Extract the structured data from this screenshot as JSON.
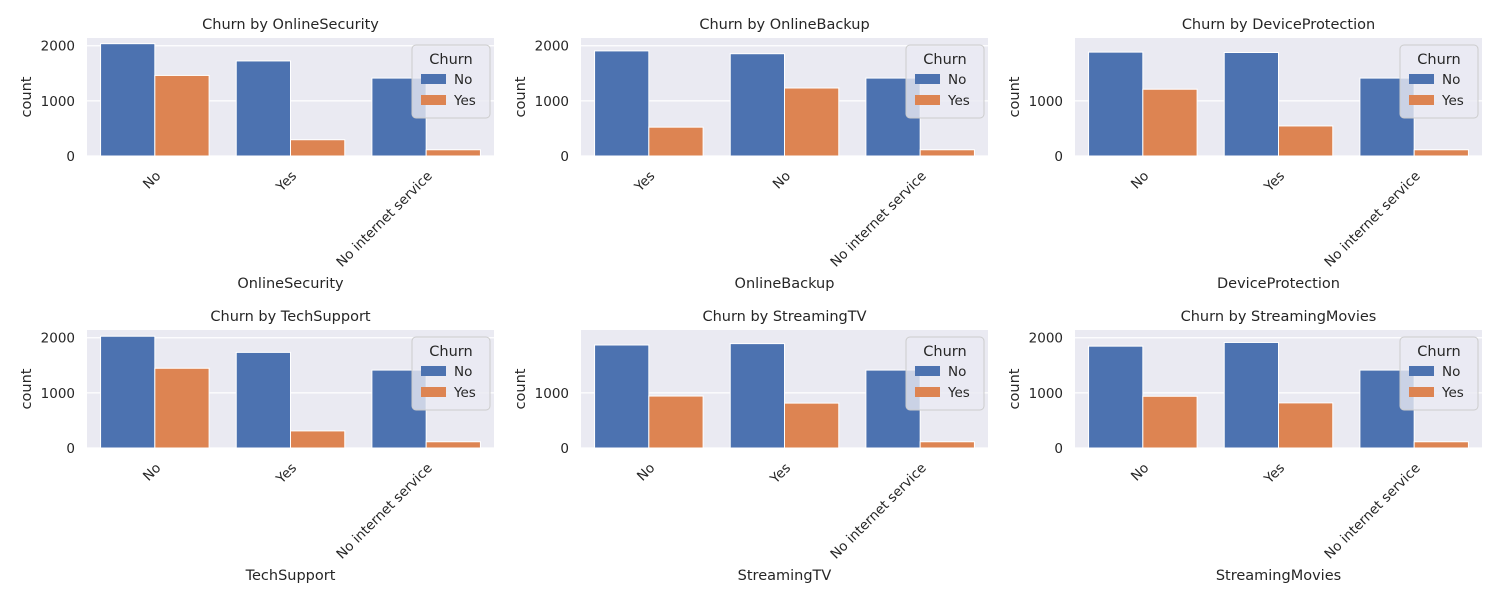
{
  "colors": {
    "No": "#4c72b0",
    "Yes": "#dd8452",
    "axes_bg": "#eaeaf2",
    "grid": "#ffffff",
    "text": "#262626"
  },
  "chart_data": [
    {
      "type": "bar",
      "title": "Churn by OnlineSecurity",
      "xlabel": "OnlineSecurity",
      "ylabel": "count",
      "categories": [
        "No",
        "Yes",
        "No internet service"
      ],
      "series": [
        {
          "name": "No",
          "values": [
            2037,
            1724,
            1413
          ]
        },
        {
          "name": "Yes",
          "values": [
            1461,
            295,
            113
          ]
        }
      ],
      "yticks": [
        0,
        1000,
        2000
      ],
      "ylim": [
        0,
        2140
      ],
      "legend": {
        "title": "Churn",
        "position": "top-right"
      },
      "grid": true
    },
    {
      "type": "bar",
      "title": "Churn by OnlineBackup",
      "xlabel": "OnlineBackup",
      "ylabel": "count",
      "categories": [
        "Yes",
        "No",
        "No internet service"
      ],
      "series": [
        {
          "name": "No",
          "values": [
            1906,
            1855,
            1413
          ]
        },
        {
          "name": "Yes",
          "values": [
            523,
            1233,
            113
          ]
        }
      ],
      "yticks": [
        0,
        1000,
        2000
      ],
      "ylim": [
        0,
        2140
      ],
      "legend": {
        "title": "Churn",
        "position": "top-right"
      },
      "grid": true
    },
    {
      "type": "bar",
      "title": "Churn by DeviceProtection",
      "xlabel": "DeviceProtection",
      "ylabel": "count",
      "categories": [
        "No",
        "Yes",
        "No internet service"
      ],
      "series": [
        {
          "name": "No",
          "values": [
            1884,
            1877,
            1413
          ]
        },
        {
          "name": "Yes",
          "values": [
            1211,
            545,
            113
          ]
        }
      ],
      "yticks": [
        0,
        1000
      ],
      "ylim": [
        0,
        2140
      ],
      "legend": {
        "title": "Churn",
        "position": "top-right"
      },
      "grid": true
    },
    {
      "type": "bar",
      "title": "Churn by TechSupport",
      "xlabel": "TechSupport",
      "ylabel": "count",
      "categories": [
        "No",
        "Yes",
        "No internet service"
      ],
      "series": [
        {
          "name": "No",
          "values": [
            2027,
            1734,
            1413
          ]
        },
        {
          "name": "Yes",
          "values": [
            1446,
            310,
            113
          ]
        }
      ],
      "yticks": [
        0,
        1000,
        2000
      ],
      "ylim": [
        0,
        2140
      ],
      "legend": {
        "title": "Churn",
        "position": "top-right"
      },
      "grid": true
    },
    {
      "type": "bar",
      "title": "Churn by StreamingTV",
      "xlabel": "StreamingTV",
      "ylabel": "count",
      "categories": [
        "No",
        "Yes",
        "No internet service"
      ],
      "series": [
        {
          "name": "No",
          "values": [
            1868,
            1893,
            1413
          ]
        },
        {
          "name": "Yes",
          "values": [
            942,
            814,
            113
          ]
        }
      ],
      "yticks": [
        0,
        1000
      ],
      "ylim": [
        0,
        2140
      ],
      "legend": {
        "title": "Churn",
        "position": "top-right"
      },
      "grid": true
    },
    {
      "type": "bar",
      "title": "Churn by StreamingMovies",
      "xlabel": "StreamingMovies",
      "ylabel": "count",
      "categories": [
        "No",
        "Yes",
        "No internet service"
      ],
      "series": [
        {
          "name": "No",
          "values": [
            1847,
            1914,
            1413
          ]
        },
        {
          "name": "Yes",
          "values": [
            938,
            818,
            113
          ]
        }
      ],
      "yticks": [
        0,
        1000,
        2000
      ],
      "ylim": [
        0,
        2140
      ],
      "legend": {
        "title": "Churn",
        "position": "top-right"
      },
      "grid": true
    }
  ]
}
